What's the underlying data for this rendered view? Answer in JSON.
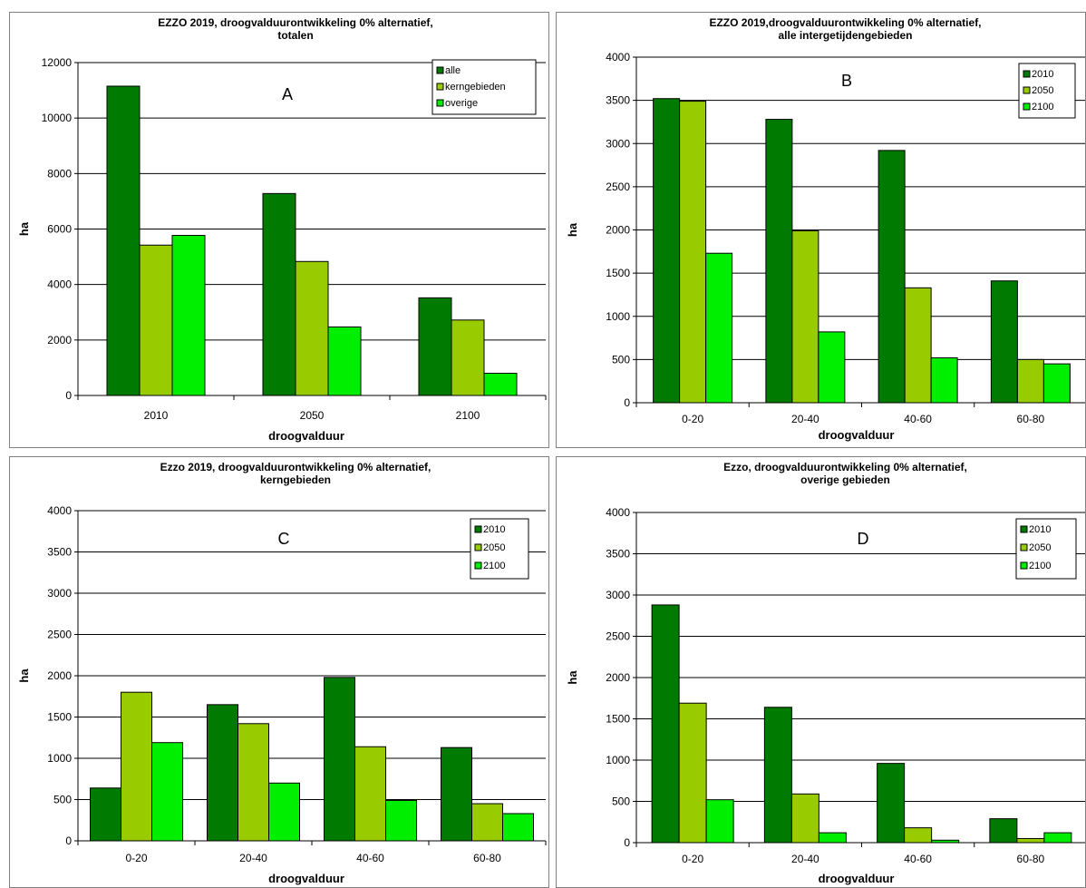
{
  "chart_data": [
    {
      "id": "A",
      "type": "bar",
      "title": [
        "EZZO 2019, droogvalduurontwikkeling 0% alternatief,",
        "totalen"
      ],
      "panel_letter": "A",
      "xlabel": "droogvalduur",
      "ylabel": "ha",
      "ylim": [
        0,
        12000
      ],
      "yticks": [
        0,
        2000,
        4000,
        6000,
        8000,
        10000,
        12000
      ],
      "categories": [
        "2010",
        "2050",
        "2100"
      ],
      "series": [
        {
          "name": "alle",
          "color": "#007a00",
          "values": [
            11150,
            7280,
            3520
          ]
        },
        {
          "name": "kerngebieden",
          "color": "#99cc00",
          "values": [
            5420,
            4830,
            2720
          ]
        },
        {
          "name": "overige",
          "color": "#00ee00",
          "values": [
            5770,
            2470,
            800
          ]
        }
      ],
      "legend_position": "top-right",
      "grid": true
    },
    {
      "id": "B",
      "type": "bar",
      "title": [
        "EZZO 2019,droogvalduurontwikkeling 0% alternatief,",
        "alle intergetijdengebieden"
      ],
      "panel_letter": "B",
      "xlabel": "droogvalduur",
      "ylabel": "ha",
      "ylim": [
        0,
        4000
      ],
      "yticks": [
        0,
        500,
        1000,
        1500,
        2000,
        2500,
        3000,
        3500,
        4000
      ],
      "categories": [
        "0-20",
        "20-40",
        "40-60",
        "60-80"
      ],
      "series": [
        {
          "name": "2010",
          "color": "#007a00",
          "values": [
            3520,
            3280,
            2920,
            1410
          ]
        },
        {
          "name": "2050",
          "color": "#99cc00",
          "values": [
            3490,
            1990,
            1330,
            500
          ]
        },
        {
          "name": "2100",
          "color": "#00ee00",
          "values": [
            1730,
            820,
            520,
            450
          ]
        }
      ],
      "legend_position": "top-right",
      "grid": true
    },
    {
      "id": "C",
      "type": "bar",
      "title": [
        "Ezzo 2019, droogvalduurontwikkeling 0% alternatief,",
        "kerngebieden"
      ],
      "panel_letter": "C",
      "xlabel": "droogvalduur",
      "ylabel": "ha",
      "ylim": [
        0,
        4000
      ],
      "yticks": [
        0,
        500,
        1000,
        1500,
        2000,
        2500,
        3000,
        3500,
        4000
      ],
      "categories": [
        "0-20",
        "20-40",
        "40-60",
        "60-80"
      ],
      "series": [
        {
          "name": "2010",
          "color": "#007a00",
          "values": [
            640,
            1650,
            1980,
            1130
          ]
        },
        {
          "name": "2050",
          "color": "#99cc00",
          "values": [
            1800,
            1420,
            1140,
            450
          ]
        },
        {
          "name": "2100",
          "color": "#00ee00",
          "values": [
            1190,
            700,
            490,
            330
          ]
        }
      ],
      "legend_position": "top-right",
      "grid": true
    },
    {
      "id": "D",
      "type": "bar",
      "title": [
        "Ezzo, droogvalduurontwikkeling 0% alternatief,",
        "overige gebieden"
      ],
      "panel_letter": "D",
      "xlabel": "droogvalduur",
      "ylabel": "ha",
      "ylim": [
        0,
        4000
      ],
      "yticks": [
        0,
        500,
        1000,
        1500,
        2000,
        2500,
        3000,
        3500,
        4000
      ],
      "categories": [
        "0-20",
        "20-40",
        "40-60",
        "60-80"
      ],
      "series": [
        {
          "name": "2010",
          "color": "#007a00",
          "values": [
            2880,
            1640,
            960,
            290
          ]
        },
        {
          "name": "2050",
          "color": "#99cc00",
          "values": [
            1690,
            590,
            180,
            50
          ]
        },
        {
          "name": "2100",
          "color": "#00ee00",
          "values": [
            520,
            120,
            30,
            120
          ]
        }
      ],
      "legend_position": "top-right",
      "grid": true
    }
  ]
}
